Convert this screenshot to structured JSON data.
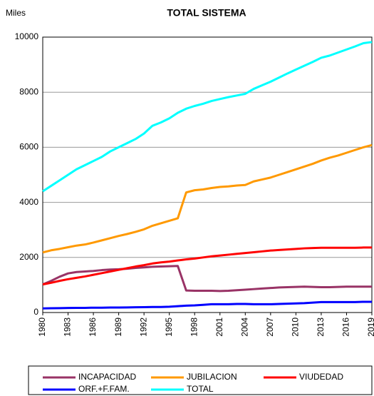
{
  "chart_data": {
    "type": "line",
    "title": "TOTAL SISTEMA",
    "y_label": "Miles",
    "x": [
      1980,
      1981,
      1982,
      1983,
      1984,
      1985,
      1986,
      1987,
      1988,
      1989,
      1990,
      1991,
      1992,
      1993,
      1994,
      1995,
      1996,
      1997,
      1998,
      1999,
      2000,
      2001,
      2002,
      2003,
      2004,
      2005,
      2006,
      2007,
      2008,
      2009,
      2010,
      2011,
      2012,
      2013,
      2014,
      2015,
      2016,
      2017,
      2018,
      2019
    ],
    "xlim": [
      1980,
      2019
    ],
    "xticks": [
      1980,
      1983,
      1986,
      1989,
      1992,
      1995,
      1998,
      2001,
      2004,
      2007,
      2010,
      2013,
      2016,
      2019
    ],
    "ylim": [
      0,
      10000
    ],
    "yticks": [
      0,
      2000,
      4000,
      6000,
      8000,
      10000
    ],
    "grid": true,
    "series": [
      {
        "name": "INCAPACIDAD",
        "color": "#993366",
        "values": [
          1020,
          1150,
          1300,
          1420,
          1470,
          1490,
          1510,
          1540,
          1560,
          1570,
          1590,
          1620,
          1640,
          1660,
          1670,
          1680,
          1690,
          800,
          790,
          790,
          790,
          780,
          790,
          810,
          830,
          850,
          870,
          890,
          910,
          920,
          930,
          940,
          930,
          920,
          920,
          930,
          940,
          940,
          940,
          940
        ]
      },
      {
        "name": "JUBILACION",
        "color": "#FF9900",
        "values": [
          2180,
          2260,
          2310,
          2370,
          2430,
          2470,
          2540,
          2620,
          2700,
          2780,
          2850,
          2930,
          3020,
          3150,
          3240,
          3330,
          3420,
          4360,
          4440,
          4470,
          4520,
          4560,
          4580,
          4610,
          4630,
          4760,
          4830,
          4900,
          5000,
          5100,
          5200,
          5300,
          5400,
          5520,
          5620,
          5700,
          5800,
          5900,
          6000,
          6080
        ]
      },
      {
        "name": "VIUDEDAD",
        "color": "#FF0000",
        "values": [
          1020,
          1080,
          1150,
          1210,
          1260,
          1310,
          1370,
          1430,
          1490,
          1550,
          1610,
          1670,
          1720,
          1780,
          1820,
          1850,
          1890,
          1930,
          1960,
          2000,
          2040,
          2070,
          2100,
          2130,
          2160,
          2190,
          2220,
          2250,
          2270,
          2290,
          2310,
          2330,
          2340,
          2350,
          2350,
          2350,
          2350,
          2350,
          2360,
          2360
        ]
      },
      {
        "name": "ORF.+F.FAM.",
        "color": "#0000FF",
        "values": [
          150,
          155,
          160,
          165,
          170,
          170,
          175,
          175,
          180,
          180,
          185,
          190,
          195,
          200,
          200,
          210,
          230,
          250,
          260,
          280,
          300,
          300,
          300,
          310,
          310,
          300,
          300,
          300,
          310,
          320,
          330,
          340,
          360,
          380,
          380,
          380,
          380,
          380,
          390,
          390
        ]
      },
      {
        "name": "TOTAL",
        "color": "#00FFFF",
        "values": [
          4400,
          4600,
          4800,
          5000,
          5200,
          5350,
          5500,
          5650,
          5850,
          6000,
          6150,
          6300,
          6500,
          6780,
          6900,
          7050,
          7250,
          7400,
          7500,
          7580,
          7680,
          7750,
          7820,
          7880,
          7940,
          8120,
          8250,
          8380,
          8530,
          8680,
          8820,
          8960,
          9100,
          9250,
          9330,
          9440,
          9550,
          9660,
          9780,
          9820
        ]
      }
    ]
  }
}
